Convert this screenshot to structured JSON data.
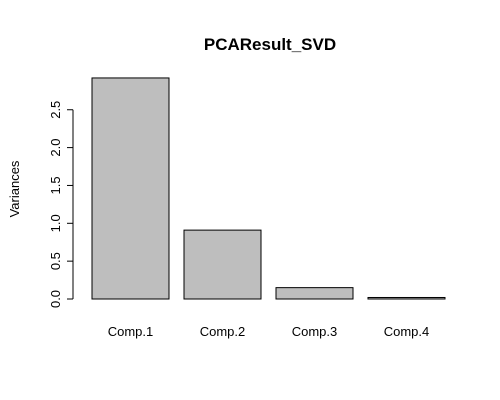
{
  "chart_data": {
    "type": "bar",
    "title": "PCAResult_SVD",
    "xlabel": "",
    "ylabel": "Variances",
    "categories": [
      "Comp.1",
      "Comp.2",
      "Comp.3",
      "Comp.4"
    ],
    "values": [
      2.92,
      0.91,
      0.15,
      0.02
    ],
    "ylim": [
      0,
      2.92
    ],
    "yticks": [
      "0.0",
      "0.5",
      "1.0",
      "1.5",
      "2.0",
      "2.5"
    ],
    "grid": false,
    "bar_color": "#bebebe",
    "border_color": "#000000"
  }
}
